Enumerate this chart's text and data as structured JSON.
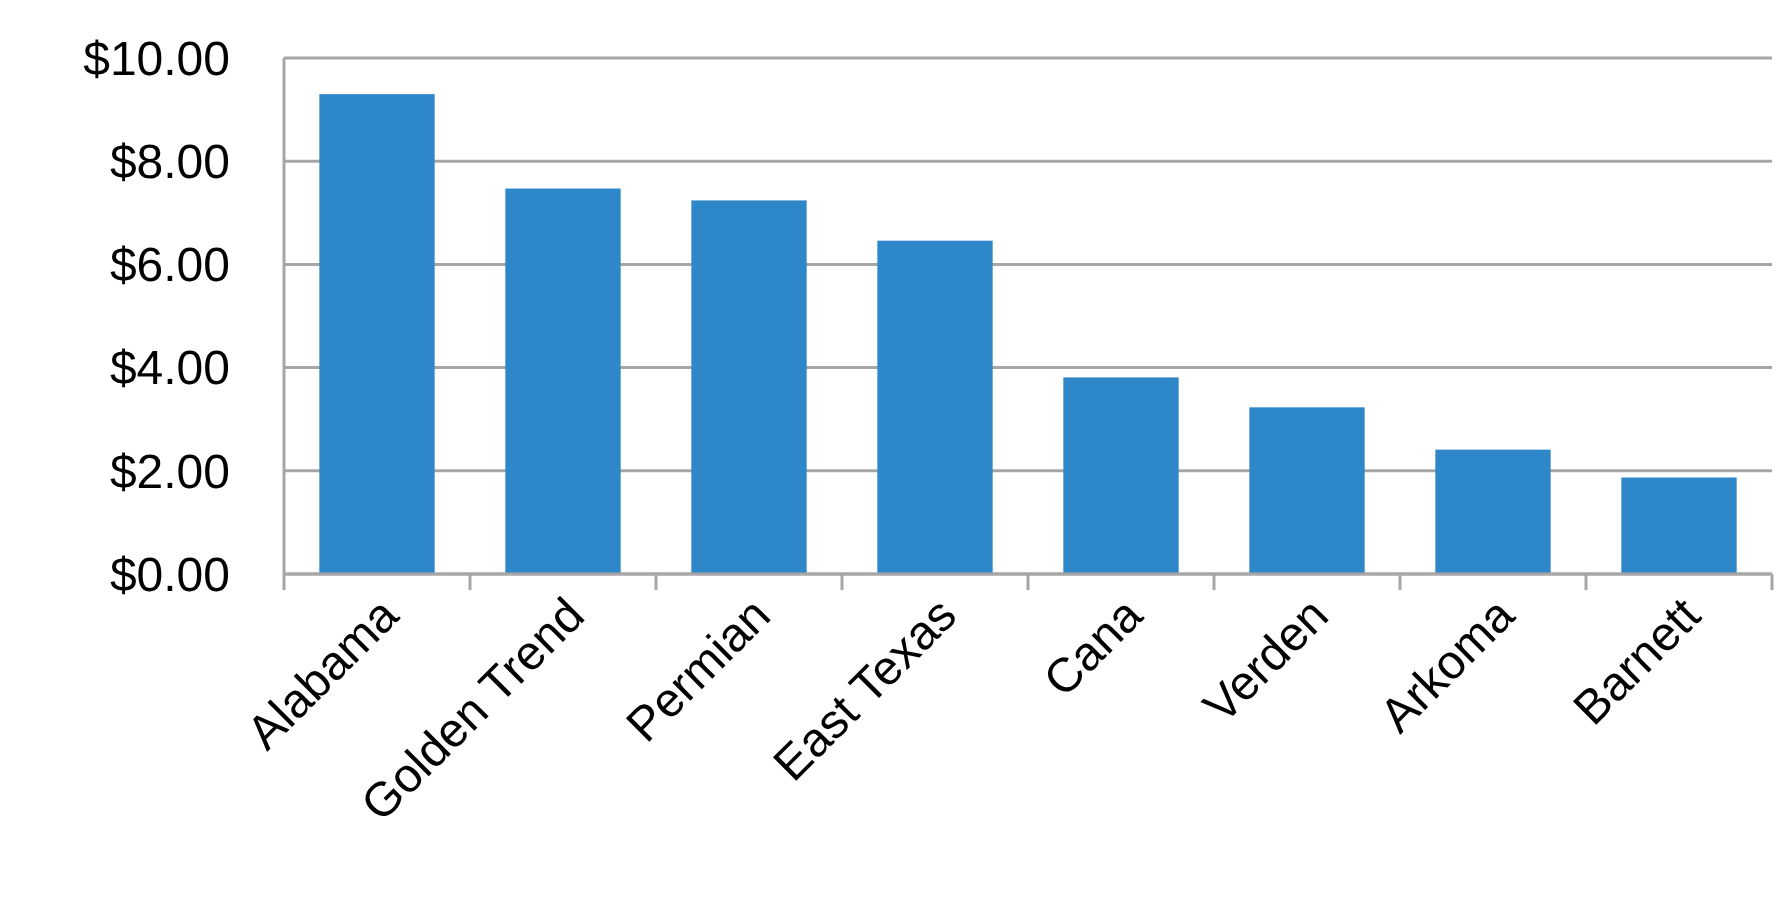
{
  "chart_data": {
    "type": "bar",
    "categories": [
      "Alabama",
      "Golden Trend",
      "Permian",
      "East Texas",
      "Cana",
      "Verden",
      "Arkoma",
      "Barnett"
    ],
    "values": [
      9.3,
      7.47,
      7.24,
      6.46,
      3.81,
      3.23,
      2.41,
      1.87
    ],
    "color": "#2e87c8",
    "ylim": [
      0,
      10
    ],
    "yticks": [
      {
        "value": 0,
        "label": "$0.00"
      },
      {
        "value": 2,
        "label": "$2.00"
      },
      {
        "value": 4,
        "label": "$4.00"
      },
      {
        "value": 6,
        "label": "$6.00"
      },
      {
        "value": 8,
        "label": "$8.00"
      },
      {
        "value": 10,
        "label": "$10.00"
      }
    ],
    "grid": "y"
  }
}
